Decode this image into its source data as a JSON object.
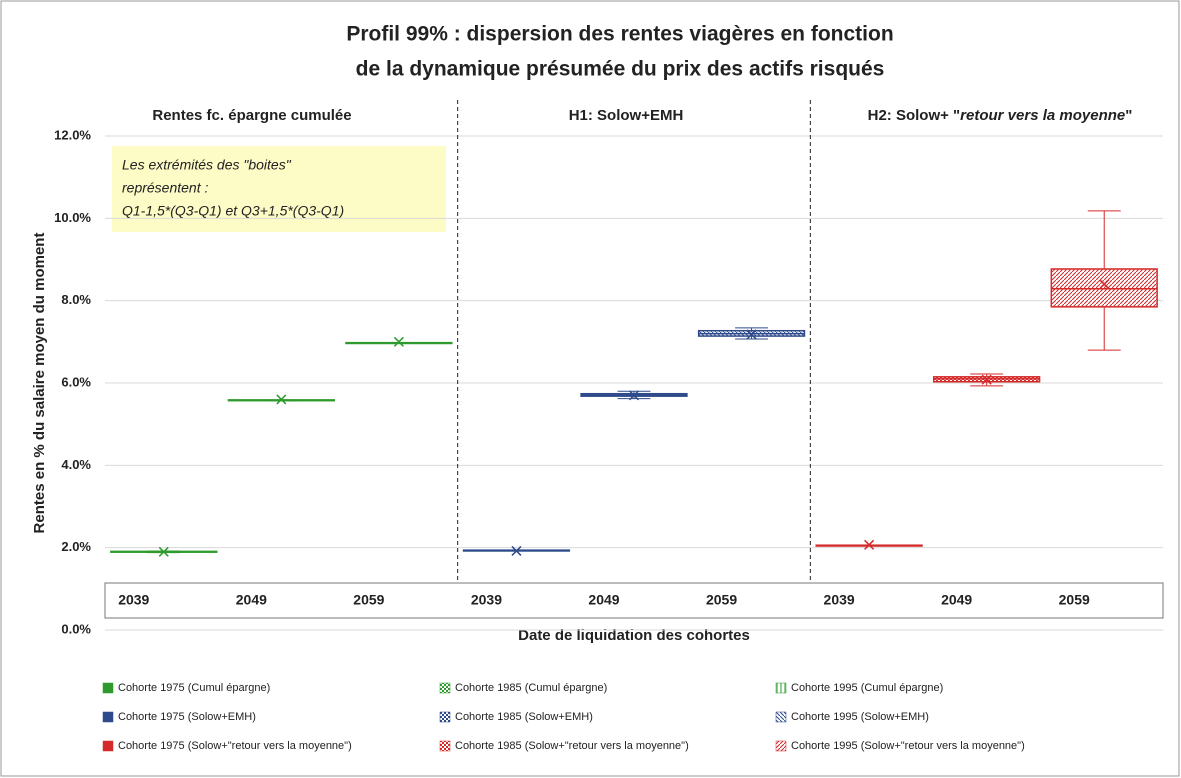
{
  "chart_data": {
    "type": "box",
    "title": [
      "Profil 99% : dispersion des rentes viagères en fonction",
      "de la dynamique présumée du prix des actifs risqués"
    ],
    "sections": [
      {
        "text": [
          "Rentes fc. épargne  cumulée"
        ]
      },
      {
        "text": [
          "H1: Solow+EMH"
        ]
      },
      {
        "text": [
          "H2: Solow+ \"",
          "retour vers la moyenne",
          "\""
        ]
      }
    ],
    "annotation": [
      "Les extrémités des \"boites\"",
      "représentent :",
      "Q1-1,5*(Q3-Q1) et Q3+1,5*(Q3-Q1)"
    ],
    "y_label": "Rentes en % du salaire moyen du moment",
    "x_label": "Date de liquidation des cohortes",
    "categories": [
      "2039",
      "2049",
      "2059",
      "2039",
      "2049",
      "2059",
      "2039",
      "2049",
      "2059"
    ],
    "ylim": [
      0,
      12
    ],
    "yticks": [
      {
        "value": 0,
        "label": "0.0%"
      },
      {
        "value": 2,
        "label": "2.0%"
      },
      {
        "value": 4,
        "label": "4.0%"
      },
      {
        "value": 6,
        "label": "6.0%"
      },
      {
        "value": 8,
        "label": "8.0%"
      },
      {
        "value": 10,
        "label": "10.0%"
      },
      {
        "value": 12,
        "label": "12.0%"
      }
    ],
    "grid": true,
    "series": [
      {
        "name": "Cohorte 1975 (Cumul épargne)",
        "color": "#2e9a2e",
        "pattern": "solid",
        "whisker_low": 1.88,
        "q1": 1.89,
        "median": 1.9,
        "q3": 1.91,
        "whisker_high": 1.92,
        "mean": 1.9
      },
      {
        "name": "Cohorte 1985  (Cumul épargne)",
        "color": "#2e9a2e",
        "pattern": "crosshatch",
        "whisker_low": 5.57,
        "q1": 5.57,
        "median": 5.58,
        "q3": 5.59,
        "whisker_high": 5.59,
        "mean": 5.6
      },
      {
        "name": "Cohorte 1995  (Cumul épargne)",
        "color": "#2e9a2e",
        "pattern": "vertical",
        "whisker_low": 6.96,
        "q1": 6.96,
        "median": 6.97,
        "q3": 6.98,
        "whisker_high": 6.98,
        "mean": 7.0
      },
      {
        "name": "Cohorte 1975 (Solow+EMH)",
        "color": "#2f4a8a",
        "pattern": "solid",
        "whisker_low": 1.92,
        "q1": 1.92,
        "median": 1.93,
        "q3": 1.94,
        "whisker_high": 1.94,
        "mean": 1.92
      },
      {
        "name": "Cohorte 1985  (Solow+EMH)",
        "color": "#2f4a8a",
        "pattern": "crosshatch",
        "whisker_low": 5.62,
        "q1": 5.68,
        "median": 5.71,
        "q3": 5.74,
        "whisker_high": 5.8,
        "mean": 5.7
      },
      {
        "name": "Cohorte 1995   (Solow+EMH)",
        "color": "#2f4a8a",
        "pattern": "backdiagonal",
        "whisker_low": 7.07,
        "q1": 7.14,
        "median": 7.2,
        "q3": 7.27,
        "whisker_high": 7.34,
        "mean": 7.18
      },
      {
        "name": "Cohorte 1975 (Solow+\"retour vers la moyenne\")",
        "color": "#d42a2a",
        "pattern": "solid",
        "whisker_low": 2.04,
        "q1": 2.04,
        "median": 2.05,
        "q3": 2.06,
        "whisker_high": 2.06,
        "mean": 2.07
      },
      {
        "name": "Cohorte 1985  (Solow+\"retour vers la moyenne\")",
        "color": "#d42a2a",
        "pattern": "crosshatch",
        "whisker_low": 5.93,
        "q1": 6.03,
        "median": 6.1,
        "q3": 6.15,
        "whisker_high": 6.22,
        "mean": 6.08
      },
      {
        "name": "Cohorte 1995  (Solow+\"retour vers la moyenne\")",
        "color": "#d42a2a",
        "pattern": "diagonal",
        "whisker_low": 6.8,
        "q1": 7.85,
        "median": 8.29,
        "q3": 8.77,
        "whisker_high": 10.18,
        "mean": 8.4
      }
    ]
  }
}
